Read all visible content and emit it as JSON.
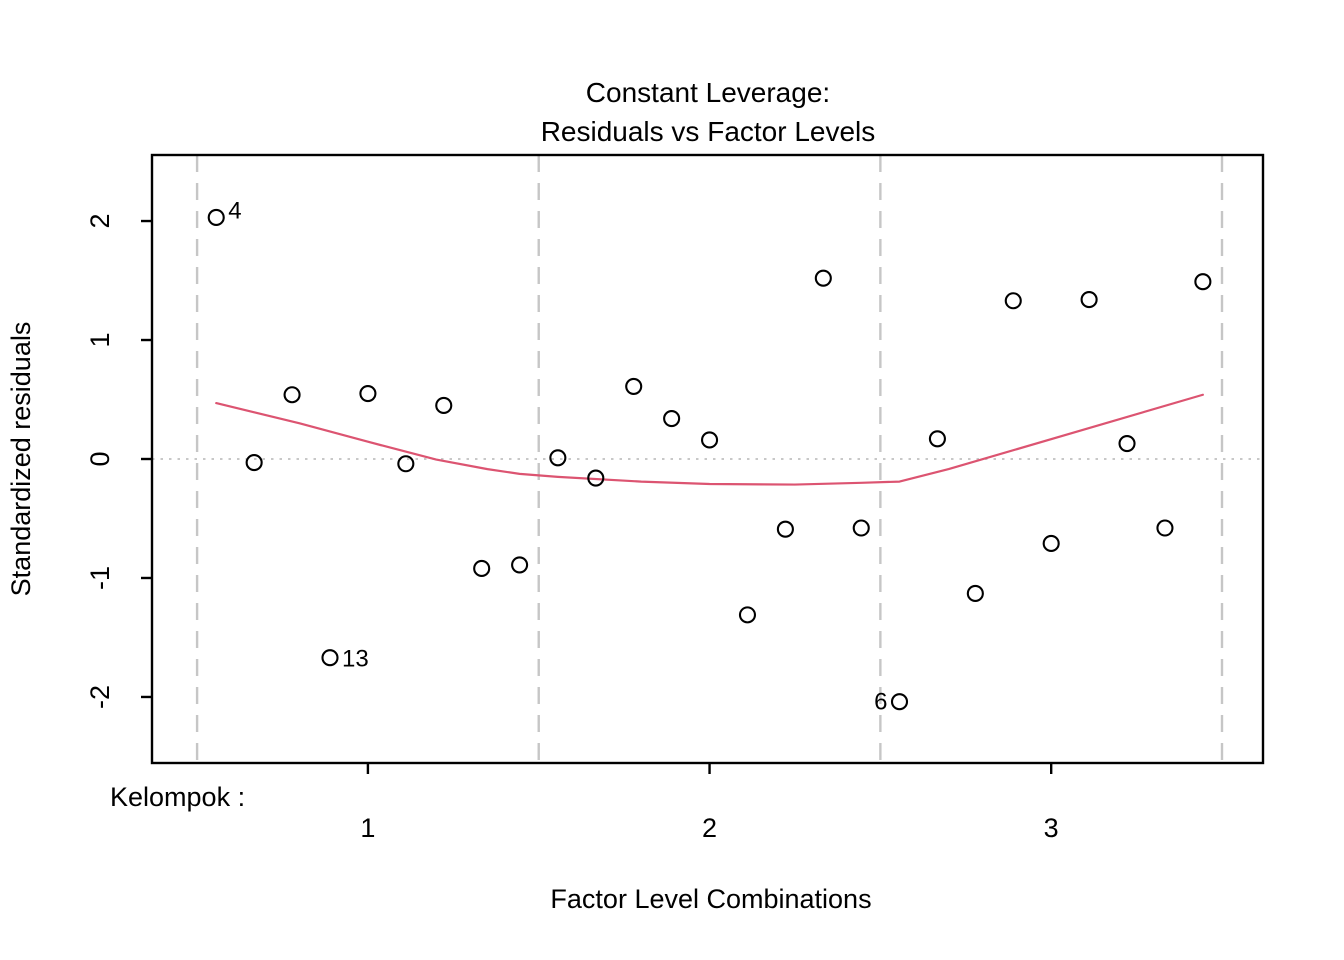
{
  "chart_data": {
    "type": "scatter",
    "title_lines": [
      "Constant Leverage:",
      "Residuals vs Factor Levels"
    ],
    "xlabel": "Factor Level Combinations",
    "ylabel": "Standardized residuals",
    "factor_axis_prefix": "Kelompok :",
    "x_tick_labels": [
      "1",
      "2",
      "3"
    ],
    "x_tick_values": [
      1,
      2,
      3
    ],
    "y_tick_values": [
      2,
      1,
      0,
      -1,
      -2
    ],
    "xlim": [
      0.368,
      3.62
    ],
    "ylim": [
      -2.555,
      2.555
    ],
    "separator_x": [
      0.5,
      1.5,
      2.5,
      3.5
    ],
    "zero_line_y": 0,
    "points": [
      {
        "x": 0.556,
        "y": 2.03,
        "label": "4",
        "label_side": "right",
        "label_dy": 1
      },
      {
        "x": 0.667,
        "y": -0.03
      },
      {
        "x": 0.778,
        "y": 0.54
      },
      {
        "x": 0.889,
        "y": -1.67,
        "label": "13",
        "label_side": "right",
        "label_dy": 9
      },
      {
        "x": 1.0,
        "y": 0.55
      },
      {
        "x": 1.111,
        "y": -0.04
      },
      {
        "x": 1.222,
        "y": 0.45
      },
      {
        "x": 1.333,
        "y": -0.92
      },
      {
        "x": 1.444,
        "y": -0.89
      },
      {
        "x": 1.556,
        "y": 0.01
      },
      {
        "x": 1.667,
        "y": -0.16
      },
      {
        "x": 1.778,
        "y": 0.61
      },
      {
        "x": 1.889,
        "y": 0.34
      },
      {
        "x": 2.0,
        "y": 0.16
      },
      {
        "x": 2.111,
        "y": -1.31
      },
      {
        "x": 2.222,
        "y": -0.59
      },
      {
        "x": 2.333,
        "y": 1.52
      },
      {
        "x": 2.444,
        "y": -0.58
      },
      {
        "x": 2.556,
        "y": -2.04,
        "label": "6",
        "label_side": "left",
        "label_dy": 8
      },
      {
        "x": 2.667,
        "y": 0.17
      },
      {
        "x": 2.778,
        "y": -1.13
      },
      {
        "x": 2.889,
        "y": 1.33
      },
      {
        "x": 3.0,
        "y": -0.71
      },
      {
        "x": 3.111,
        "y": 1.34
      },
      {
        "x": 3.222,
        "y": 0.13
      },
      {
        "x": 3.333,
        "y": -0.58
      },
      {
        "x": 3.444,
        "y": 1.49
      }
    ],
    "smooth_line": [
      [
        0.556,
        0.47
      ],
      [
        0.8,
        0.3
      ],
      [
        1.0,
        0.145
      ],
      [
        1.2,
        -0.005
      ],
      [
        1.35,
        -0.085
      ],
      [
        1.444,
        -0.125
      ],
      [
        1.556,
        -0.15
      ],
      [
        1.8,
        -0.19
      ],
      [
        2.0,
        -0.21
      ],
      [
        2.25,
        -0.215
      ],
      [
        2.444,
        -0.2
      ],
      [
        2.556,
        -0.19
      ],
      [
        2.7,
        -0.085
      ],
      [
        3.444,
        0.54
      ]
    ],
    "colors": {
      "point_stroke": "#000000",
      "smooth_line": "#dc5471",
      "separator": "#c6c6c6",
      "zero_line": "#c8c8c8",
      "axis": "#000000"
    }
  }
}
